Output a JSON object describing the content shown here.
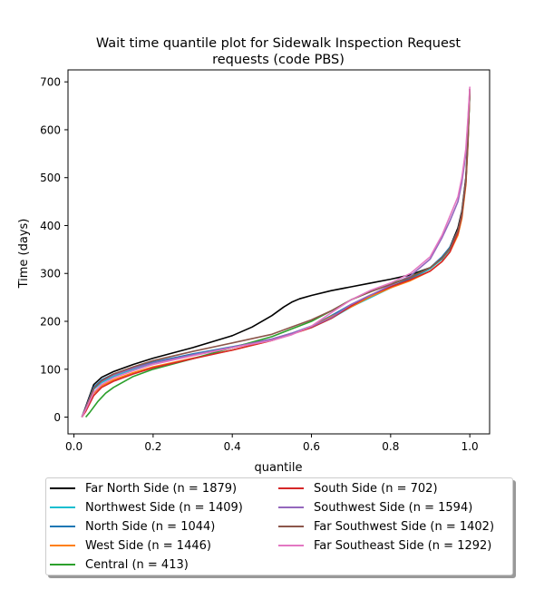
{
  "chart_data": {
    "type": "line",
    "title": "Wait time quantile plot for Sidewalk Inspection Request\nrequests (code PBS)",
    "xlabel": "quantile",
    "ylabel": "Time (days)",
    "xlim": [
      -0.015,
      1.05
    ],
    "ylim": [
      -35,
      725
    ],
    "xticks": [
      0.0,
      0.2,
      0.4,
      0.6,
      0.8,
      1.0
    ],
    "xtick_labels": [
      "0.0",
      "0.2",
      "0.4",
      "0.6",
      "0.8",
      "1.0"
    ],
    "yticks": [
      0,
      100,
      200,
      300,
      400,
      500,
      600,
      700
    ],
    "ytick_labels": [
      "0",
      "100",
      "200",
      "300",
      "400",
      "500",
      "600",
      "700"
    ],
    "grid": false,
    "legend_placement": "below",
    "series": [
      {
        "name": "Far North Side (n = 1879)",
        "color": "#000000",
        "x": [
          0.02,
          0.03,
          0.05,
          0.07,
          0.1,
          0.15,
          0.2,
          0.3,
          0.4,
          0.45,
          0.5,
          0.53,
          0.55,
          0.57,
          0.6,
          0.65,
          0.7,
          0.75,
          0.8,
          0.85,
          0.9,
          0.93,
          0.95,
          0.97,
          0.98,
          0.99,
          0.995,
          1.0
        ],
        "y": [
          0,
          22,
          68,
          83,
          95,
          110,
          123,
          145,
          170,
          188,
          212,
          230,
          240,
          247,
          254,
          264,
          272,
          280,
          288,
          297,
          312,
          330,
          355,
          395,
          430,
          500,
          580,
          680
        ]
      },
      {
        "name": "Northwest Side (n = 1409)",
        "color": "#17becf",
        "x": [
          0.02,
          0.03,
          0.05,
          0.07,
          0.1,
          0.15,
          0.2,
          0.3,
          0.4,
          0.5,
          0.55,
          0.6,
          0.65,
          0.7,
          0.75,
          0.8,
          0.85,
          0.9,
          0.93,
          0.95,
          0.97,
          0.98,
          0.99,
          0.995,
          1.0
        ],
        "y": [
          0,
          18,
          58,
          72,
          85,
          100,
          113,
          130,
          145,
          162,
          174,
          187,
          206,
          230,
          250,
          270,
          288,
          310,
          330,
          350,
          385,
          420,
          490,
          570,
          680
        ]
      },
      {
        "name": "North Side (n = 1044)",
        "color": "#1f77b4",
        "x": [
          0.02,
          0.03,
          0.05,
          0.07,
          0.1,
          0.15,
          0.2,
          0.3,
          0.4,
          0.5,
          0.55,
          0.6,
          0.65,
          0.7,
          0.75,
          0.8,
          0.85,
          0.9,
          0.93,
          0.95,
          0.97,
          0.98,
          0.99,
          0.995,
          1.0
        ],
        "y": [
          0,
          20,
          63,
          78,
          90,
          103,
          115,
          132,
          147,
          163,
          175,
          190,
          212,
          235,
          255,
          272,
          290,
          312,
          335,
          355,
          390,
          425,
          495,
          575,
          685
        ]
      },
      {
        "name": "West Side (n = 1446)",
        "color": "#ff7f0e",
        "x": [
          0.02,
          0.03,
          0.05,
          0.07,
          0.1,
          0.15,
          0.2,
          0.3,
          0.4,
          0.5,
          0.55,
          0.6,
          0.65,
          0.7,
          0.75,
          0.8,
          0.85,
          0.9,
          0.93,
          0.95,
          0.97,
          0.98,
          0.99,
          0.995,
          1.0
        ],
        "y": [
          0,
          15,
          50,
          65,
          78,
          93,
          105,
          123,
          140,
          160,
          174,
          189,
          210,
          230,
          252,
          270,
          285,
          305,
          325,
          345,
          380,
          415,
          485,
          565,
          685
        ]
      },
      {
        "name": "Central (n = 413)",
        "color": "#2ca02c",
        "x": [
          0.03,
          0.04,
          0.06,
          0.08,
          0.1,
          0.15,
          0.2,
          0.3,
          0.4,
          0.5,
          0.55,
          0.6,
          0.65,
          0.7,
          0.75,
          0.8,
          0.85,
          0.9,
          0.93,
          0.95,
          0.97,
          0.98,
          0.99,
          0.995,
          1.0
        ],
        "y": [
          0,
          10,
          32,
          50,
          62,
          85,
          100,
          122,
          145,
          168,
          184,
          200,
          222,
          245,
          262,
          278,
          293,
          312,
          332,
          352,
          385,
          420,
          490,
          570,
          685
        ]
      },
      {
        "name": "South Side (n = 702)",
        "color": "#d62728",
        "x": [
          0.02,
          0.03,
          0.05,
          0.07,
          0.1,
          0.15,
          0.2,
          0.3,
          0.4,
          0.5,
          0.55,
          0.6,
          0.65,
          0.7,
          0.75,
          0.8,
          0.85,
          0.9,
          0.93,
          0.95,
          0.97,
          0.98,
          0.99,
          0.995,
          1.0
        ],
        "y": [
          0,
          12,
          45,
          62,
          75,
          90,
          103,
          122,
          140,
          160,
          173,
          187,
          206,
          232,
          255,
          272,
          287,
          305,
          325,
          345,
          385,
          420,
          490,
          575,
          685
        ]
      },
      {
        "name": "Southwest Side (n = 1594)",
        "color": "#9467bd",
        "x": [
          0.02,
          0.03,
          0.05,
          0.07,
          0.1,
          0.15,
          0.2,
          0.3,
          0.4,
          0.5,
          0.55,
          0.6,
          0.65,
          0.7,
          0.75,
          0.8,
          0.85,
          0.9,
          0.93,
          0.95,
          0.97,
          0.98,
          0.99,
          0.995,
          1.0
        ],
        "y": [
          0,
          20,
          60,
          75,
          88,
          102,
          113,
          130,
          146,
          163,
          175,
          189,
          208,
          235,
          255,
          275,
          295,
          330,
          375,
          410,
          450,
          490,
          550,
          615,
          685
        ]
      },
      {
        "name": "Far Southwest Side (n = 1402)",
        "color": "#8c564b",
        "x": [
          0.02,
          0.03,
          0.05,
          0.07,
          0.1,
          0.15,
          0.2,
          0.3,
          0.4,
          0.5,
          0.55,
          0.6,
          0.65,
          0.7,
          0.75,
          0.8,
          0.85,
          0.9,
          0.93,
          0.95,
          0.97,
          0.98,
          0.99,
          0.995,
          1.0
        ],
        "y": [
          0,
          18,
          60,
          76,
          90,
          105,
          118,
          137,
          155,
          173,
          188,
          203,
          222,
          245,
          262,
          277,
          292,
          312,
          332,
          352,
          390,
          425,
          495,
          575,
          685
        ]
      },
      {
        "name": "Far Southeast Side (n = 1292)",
        "color": "#e377c2",
        "x": [
          0.02,
          0.03,
          0.05,
          0.07,
          0.1,
          0.15,
          0.2,
          0.3,
          0.4,
          0.5,
          0.55,
          0.6,
          0.65,
          0.7,
          0.75,
          0.8,
          0.85,
          0.9,
          0.93,
          0.95,
          0.97,
          0.98,
          0.99,
          0.995,
          1.0
        ],
        "y": [
          0,
          16,
          52,
          68,
          82,
          97,
          110,
          128,
          145,
          160,
          172,
          190,
          218,
          245,
          265,
          280,
          300,
          335,
          380,
          420,
          460,
          500,
          560,
          620,
          690
        ]
      }
    ]
  }
}
